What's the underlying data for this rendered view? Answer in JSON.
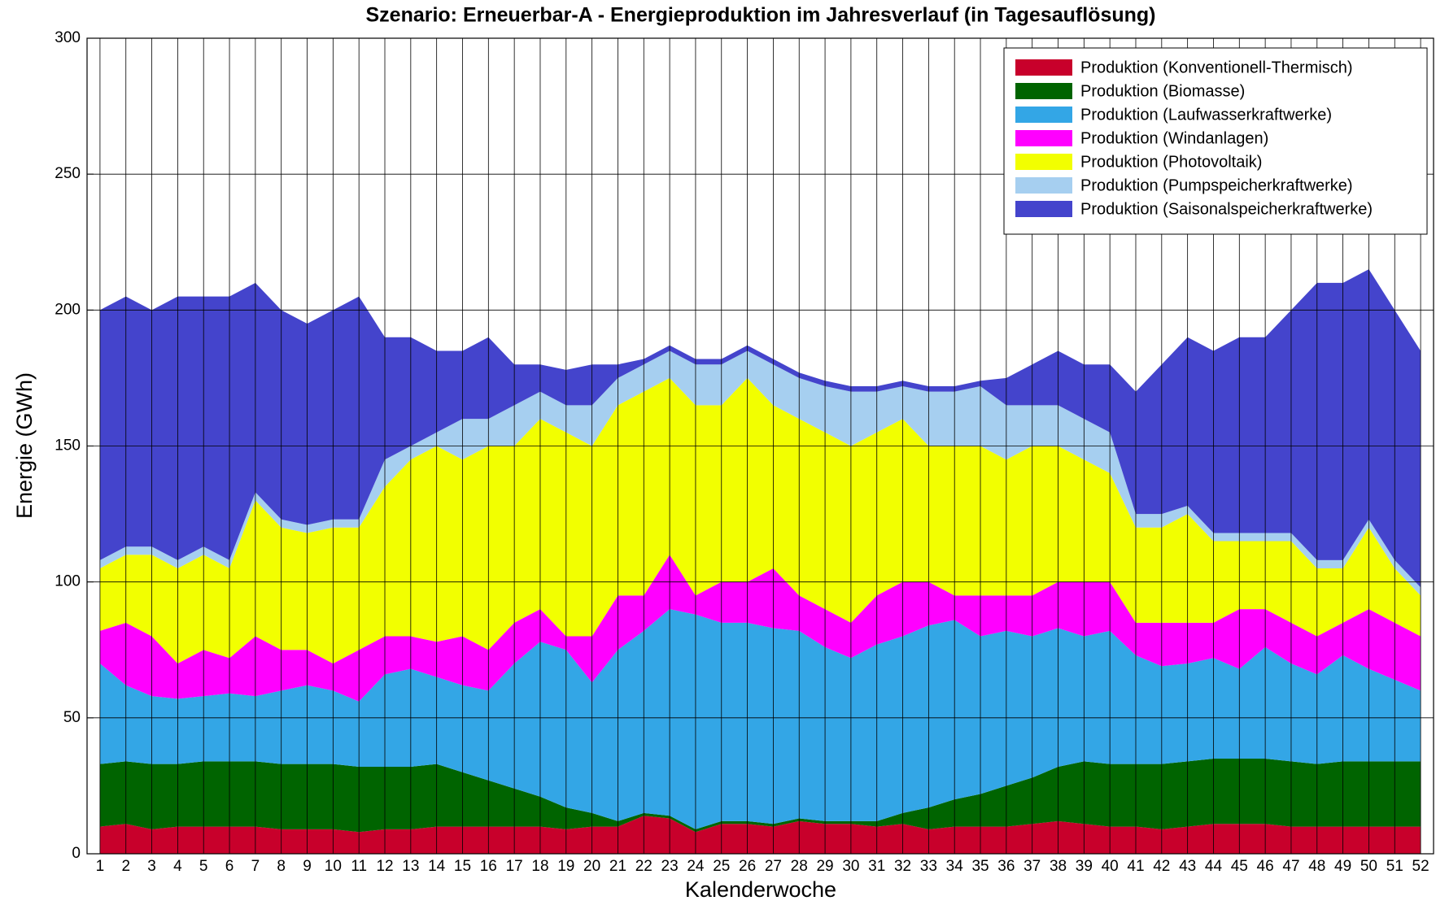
{
  "chart_data": {
    "type": "stacked_area",
    "title": "Szenario: Erneuerbar-A - Energieproduktion im Jahresverlauf (in Tagesauflösung)",
    "x_label": "Kalenderwoche",
    "y_label": "Energie (GWh)",
    "categories": [
      "1",
      "2",
      "3",
      "4",
      "5",
      "6",
      "7",
      "8",
      "9",
      "10",
      "11",
      "12",
      "13",
      "14",
      "15",
      "16",
      "17",
      "18",
      "19",
      "20",
      "21",
      "22",
      "23",
      "24",
      "25",
      "26",
      "27",
      "28",
      "29",
      "30",
      "31",
      "32",
      "33",
      "34",
      "35",
      "36",
      "37",
      "38",
      "39",
      "40",
      "41",
      "42",
      "43",
      "44",
      "45",
      "46",
      "47",
      "48",
      "49",
      "50",
      "51",
      "52"
    ],
    "ylim": [
      0,
      300
    ],
    "yticks": [
      0,
      50,
      100,
      150,
      200,
      250,
      300
    ],
    "grid": true,
    "legend": "upper right",
    "series": [
      {
        "name": "Produktion (Konventionell-Thermisch)",
        "color": "#c8002b",
        "values": [
          10,
          11,
          9,
          10,
          10,
          10,
          10,
          9,
          9,
          9,
          8,
          9,
          9,
          10,
          10,
          10,
          10,
          10,
          9,
          10,
          10,
          14,
          13,
          8,
          11,
          11,
          10,
          12,
          11,
          11,
          10,
          11,
          9,
          10,
          10,
          10,
          11,
          12,
          11,
          10,
          10,
          9,
          10,
          11,
          11,
          11,
          10,
          10,
          10,
          10,
          10,
          10
        ]
      },
      {
        "name": "Produktion (Biomasse)",
        "color": "#006400",
        "values": [
          23,
          23,
          24,
          23,
          24,
          24,
          24,
          24,
          24,
          24,
          24,
          23,
          23,
          23,
          20,
          17,
          14,
          11,
          8,
          5,
          2,
          1,
          1,
          1,
          1,
          1,
          1,
          1,
          1,
          1,
          2,
          4,
          8,
          10,
          12,
          15,
          17,
          20,
          23,
          23,
          23,
          24,
          24,
          24,
          24,
          24,
          24,
          23,
          24,
          24,
          24,
          24
        ]
      },
      {
        "name": "Produktion (Laufwasserkraftwerke)",
        "color": "#33a6e6",
        "values": [
          37,
          28,
          25,
          24,
          24,
          25,
          24,
          27,
          29,
          27,
          24,
          34,
          36,
          32,
          32,
          33,
          46,
          57,
          58,
          48,
          63,
          67,
          76,
          79,
          73,
          73,
          72,
          69,
          64,
          60,
          65,
          65,
          67,
          66,
          58,
          57,
          52,
          51,
          46,
          49,
          40,
          36,
          36,
          37,
          33,
          41,
          36,
          33,
          39,
          34,
          30,
          26
        ]
      },
      {
        "name": "Produktion (Windanlagen)",
        "color": "#ff00ff",
        "values": [
          12,
          23,
          22,
          13,
          17,
          13,
          22,
          15,
          13,
          10,
          19,
          14,
          12,
          13,
          18,
          15,
          15,
          12,
          5,
          17,
          20,
          13,
          20,
          7,
          15,
          15,
          22,
          13,
          14,
          13,
          18,
          20,
          16,
          9,
          15,
          13,
          15,
          17,
          20,
          18,
          12,
          16,
          15,
          13,
          22,
          14,
          15,
          14,
          12,
          22,
          21,
          20
        ]
      },
      {
        "name": "Produktion (Photovoltaik)",
        "color": "#f2ff00",
        "values": [
          23,
          25,
          30,
          35,
          35,
          33,
          50,
          45,
          43,
          50,
          45,
          55,
          65,
          72,
          65,
          75,
          65,
          70,
          75,
          70,
          70,
          75,
          65,
          70,
          65,
          75,
          60,
          65,
          65,
          65,
          60,
          60,
          50,
          55,
          55,
          50,
          55,
          50,
          45,
          40,
          35,
          35,
          40,
          30,
          25,
          25,
          30,
          25,
          20,
          30,
          20,
          15
        ]
      },
      {
        "name": "Produktion (Pumpspeicherkraftwerke)",
        "color": "#a6cff0",
        "values": [
          3,
          3,
          3,
          3,
          3,
          3,
          3,
          3,
          3,
          3,
          3,
          10,
          5,
          5,
          15,
          10,
          15,
          10,
          10,
          15,
          10,
          10,
          10,
          15,
          15,
          10,
          15,
          15,
          17,
          20,
          15,
          12,
          20,
          20,
          22,
          20,
          15,
          15,
          15,
          15,
          5,
          5,
          3,
          3,
          3,
          3,
          3,
          3,
          3,
          3,
          3,
          3
        ]
      },
      {
        "name": "Produktion (Saisonalspeicherkraftwerke)",
        "color": "#4444cc",
        "values": [
          92,
          92,
          87,
          97,
          92,
          97,
          77,
          77,
          74,
          77,
          82,
          45,
          40,
          30,
          25,
          30,
          15,
          10,
          13,
          15,
          5,
          2,
          2,
          2,
          2,
          2,
          2,
          2,
          2,
          2,
          2,
          2,
          2,
          2,
          2,
          10,
          15,
          20,
          20,
          25,
          45,
          55,
          62,
          67,
          72,
          72,
          82,
          102,
          102,
          92,
          92,
          87
        ]
      }
    ]
  }
}
